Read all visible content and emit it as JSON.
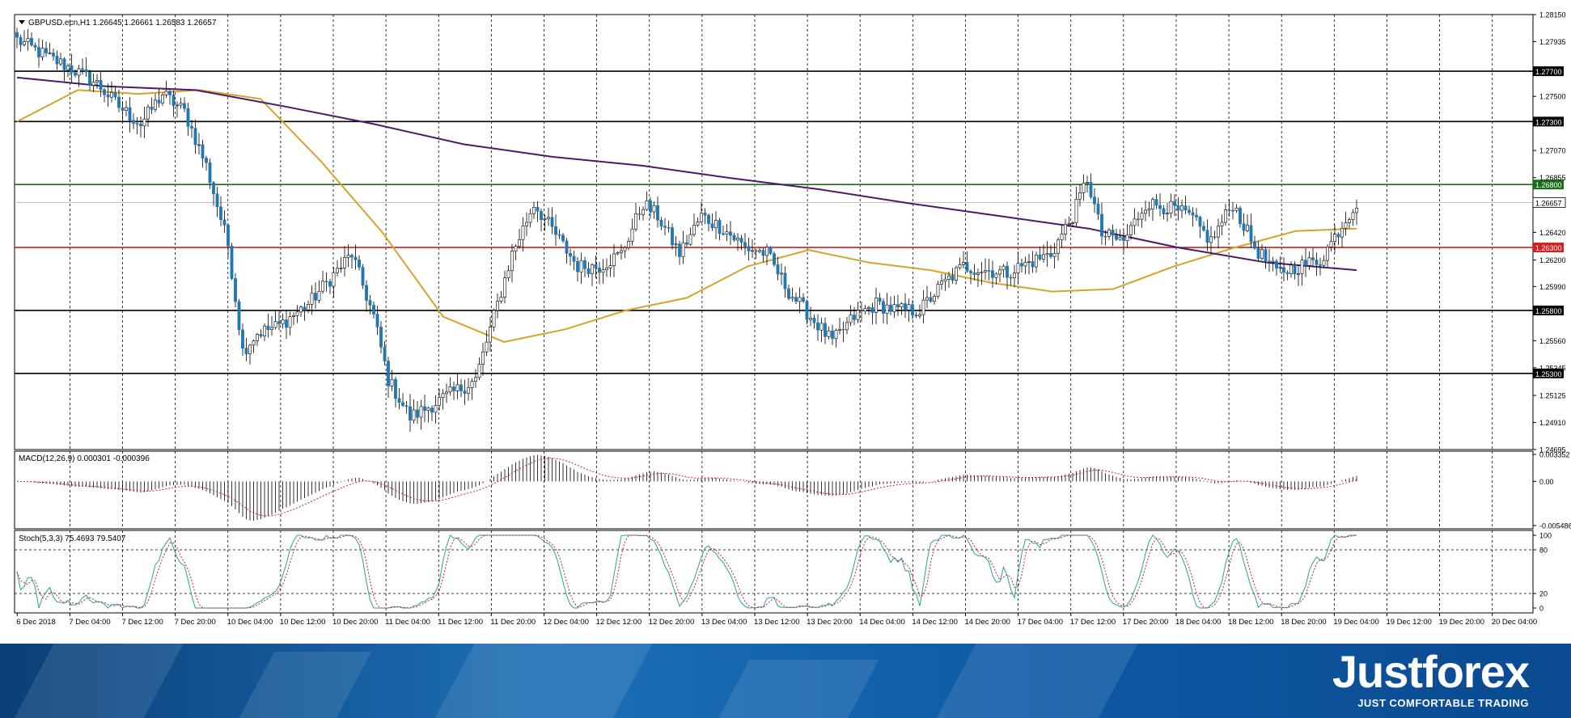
{
  "symbol_header": "GBPUSD.ecn,H1  1.26645 1.26661 1.26583 1.26657",
  "price_axis": {
    "ticks": [
      "1.28150",
      "1.27935",
      "1.27500",
      "1.27070",
      "1.26855",
      "1.26420",
      "1.26200",
      "1.25990",
      "1.25560",
      "1.25345",
      "1.25125",
      "1.24910",
      "1.24695"
    ],
    "range": [
      1.24695,
      1.2815
    ]
  },
  "levels": [
    {
      "price": 1.277,
      "label": "1.27700",
      "color": "#000000"
    },
    {
      "price": 1.273,
      "label": "1.27300",
      "color": "#000000"
    },
    {
      "price": 1.268,
      "label": "1.26800",
      "color": "#1a6e1a"
    },
    {
      "price": 1.263,
      "label": "1.26300",
      "color": "#d21f1f"
    },
    {
      "price": 1.258,
      "label": "1.25800",
      "color": "#000000"
    },
    {
      "price": 1.253,
      "label": "1.25300",
      "color": "#000000"
    }
  ],
  "current_price": {
    "price": 1.26657,
    "label": "1.26657"
  },
  "time_axis": [
    "6 Dec 2018",
    "7 Dec 04:00",
    "7 Dec 12:00",
    "7 Dec 20:00",
    "10 Dec 04:00",
    "10 Dec 12:00",
    "10 Dec 20:00",
    "11 Dec 04:00",
    "11 Dec 12:00",
    "11 Dec 20:00",
    "12 Dec 04:00",
    "12 Dec 12:00",
    "12 Dec 20:00",
    "13 Dec 04:00",
    "13 Dec 12:00",
    "13 Dec 20:00",
    "14 Dec 04:00",
    "14 Dec 12:00",
    "14 Dec 20:00",
    "17 Dec 04:00",
    "17 Dec 12:00",
    "17 Dec 20:00",
    "18 Dec 04:00",
    "18 Dec 12:00",
    "18 Dec 20:00",
    "19 Dec 04:00",
    "19 Dec 12:00",
    "19 Dec 20:00",
    "20 Dec 04:00"
  ],
  "macd": {
    "label": "MACD(12,26,9) 0.000301 -0.000396",
    "ticks": [
      "0.003352",
      "0.00",
      "-0.005486"
    ],
    "range": [
      -0.005486,
      0.003352
    ]
  },
  "stoch": {
    "label": "Stoch(5,3,3) 75.4693 79.5407",
    "ticks": [
      "100",
      "80",
      "20",
      "0"
    ],
    "levels": [
      80,
      20
    ]
  },
  "colors": {
    "bull_candle": "#ffffff",
    "bear_candle": "#1f78b4",
    "ma_fast": "#d4a52a",
    "ma_slow": "#4b1a6b",
    "stoch_main": "#2aa0a0",
    "stoch_signal": "#d21f1f"
  },
  "chart_data": {
    "type": "candlestick",
    "anchors_close": [
      [
        0,
        1.2795
      ],
      [
        8,
        1.2782
      ],
      [
        15,
        1.2772
      ],
      [
        22,
        1.276
      ],
      [
        28,
        1.2742
      ],
      [
        34,
        1.2728
      ],
      [
        40,
        1.2752
      ],
      [
        46,
        1.2738
      ],
      [
        52,
        1.2695
      ],
      [
        58,
        1.2632
      ],
      [
        62,
        1.2548
      ],
      [
        66,
        1.2562
      ],
      [
        72,
        1.2568
      ],
      [
        80,
        1.2585
      ],
      [
        86,
        1.2605
      ],
      [
        92,
        1.2625
      ],
      [
        98,
        1.2575
      ],
      [
        102,
        1.2525
      ],
      [
        108,
        1.2495
      ],
      [
        114,
        1.2505
      ],
      [
        120,
        1.2515
      ],
      [
        126,
        1.2525
      ],
      [
        132,
        1.2585
      ],
      [
        136,
        1.2625
      ],
      [
        142,
        1.2665
      ],
      [
        148,
        1.264
      ],
      [
        154,
        1.2615
      ],
      [
        160,
        1.2615
      ],
      [
        166,
        1.2625
      ],
      [
        172,
        1.2665
      ],
      [
        176,
        1.2655
      ],
      [
        182,
        1.2625
      ],
      [
        188,
        1.2655
      ],
      [
        194,
        1.2645
      ],
      [
        200,
        1.263
      ],
      [
        206,
        1.2625
      ],
      [
        212,
        1.2595
      ],
      [
        218,
        1.2575
      ],
      [
        224,
        1.2555
      ],
      [
        230,
        1.2575
      ],
      [
        236,
        1.2585
      ],
      [
        242,
        1.258
      ],
      [
        248,
        1.258
      ],
      [
        254,
        1.26
      ],
      [
        260,
        1.2615
      ],
      [
        266,
        1.2612
      ],
      [
        272,
        1.261
      ],
      [
        278,
        1.2618
      ],
      [
        284,
        1.2625
      ],
      [
        290,
        1.2655
      ],
      [
        294,
        1.2685
      ],
      [
        298,
        1.264
      ],
      [
        304,
        1.2635
      ],
      [
        310,
        1.2665
      ],
      [
        316,
        1.2662
      ],
      [
        322,
        1.2655
      ],
      [
        328,
        1.2635
      ],
      [
        334,
        1.2665
      ],
      [
        340,
        1.263
      ],
      [
        346,
        1.261
      ],
      [
        352,
        1.2615
      ],
      [
        358,
        1.262
      ],
      [
        364,
        1.2648
      ],
      [
        368,
        1.2666
      ]
    ],
    "ma_fast_y": [
      1.273,
      1.2755,
      1.2752,
      1.2755,
      1.2748,
      1.2698,
      1.2642,
      1.2575,
      1.2555,
      1.2565,
      1.258,
      1.259,
      1.2615,
      1.2628,
      1.2618,
      1.2612,
      1.2602,
      1.2595,
      1.2597,
      1.2615,
      1.263,
      1.2643,
      1.2645
    ],
    "ma_slow_y": [
      1.2765,
      1.2758,
      1.2755,
      1.2742,
      1.2728,
      1.2712,
      1.2702,
      1.2695,
      1.2685,
      1.2676,
      1.2665,
      1.2655,
      1.2645,
      1.263,
      1.2618,
      1.2612
    ],
    "level_lines": [
      1.277,
      1.273,
      1.268,
      1.263,
      1.258,
      1.253
    ]
  }
}
